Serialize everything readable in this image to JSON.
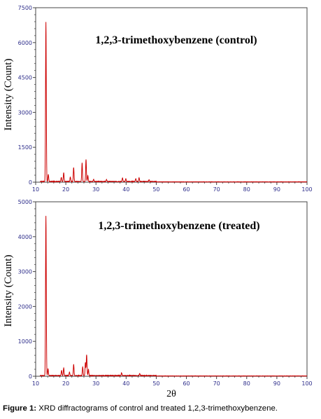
{
  "chart_data": [
    {
      "type": "line",
      "title": "1,2,3-trimethoxybenzene (control)",
      "xlabel": "",
      "ylabel": "Intensity (Count)",
      "xlim": [
        10,
        100
      ],
      "ylim": [
        0,
        7500
      ],
      "xticks": [
        10,
        20,
        30,
        40,
        50,
        60,
        70,
        80,
        90,
        100
      ],
      "yticks": [
        0,
        1500,
        3000,
        4500,
        6000,
        7500
      ],
      "color": "#cc0000",
      "grid": false,
      "peaks": [
        [
          13.4,
          6850
        ],
        [
          14.2,
          300
        ],
        [
          18.5,
          180
        ],
        [
          19.3,
          380
        ],
        [
          21.5,
          200
        ],
        [
          22.6,
          600
        ],
        [
          25.4,
          800
        ],
        [
          26.7,
          950
        ],
        [
          27.3,
          250
        ],
        [
          29.2,
          100
        ],
        [
          33.5,
          80
        ],
        [
          38.8,
          150
        ],
        [
          39.9,
          120
        ],
        [
          43.2,
          120
        ],
        [
          44.3,
          160
        ],
        [
          47.6,
          80
        ]
      ]
    },
    {
      "type": "line",
      "title": "1,2,3-trimethoxybenzene (treated)",
      "xlabel": "2θ",
      "ylabel": "Intensity (Count)",
      "xlim": [
        10,
        100
      ],
      "ylim": [
        0,
        5000
      ],
      "xticks": [
        10,
        20,
        30,
        40,
        50,
        60,
        70,
        80,
        90,
        100
      ],
      "yticks": [
        0,
        1000,
        2000,
        3000,
        4000,
        5000
      ],
      "color": "#cc0000",
      "grid": false,
      "peaks": [
        [
          13.4,
          4580
        ],
        [
          14.1,
          200
        ],
        [
          18.6,
          150
        ],
        [
          19.3,
          220
        ],
        [
          21.2,
          100
        ],
        [
          22.6,
          320
        ],
        [
          25.6,
          250
        ],
        [
          26.5,
          380
        ],
        [
          26.9,
          600
        ],
        [
          27.5,
          180
        ],
        [
          38.5,
          80
        ],
        [
          44.5,
          60
        ]
      ]
    }
  ],
  "caption": {
    "label": "Figure 1:",
    "text": " XRD diffractograms of control and treated 1,2,3-trimethoxybenzene."
  }
}
